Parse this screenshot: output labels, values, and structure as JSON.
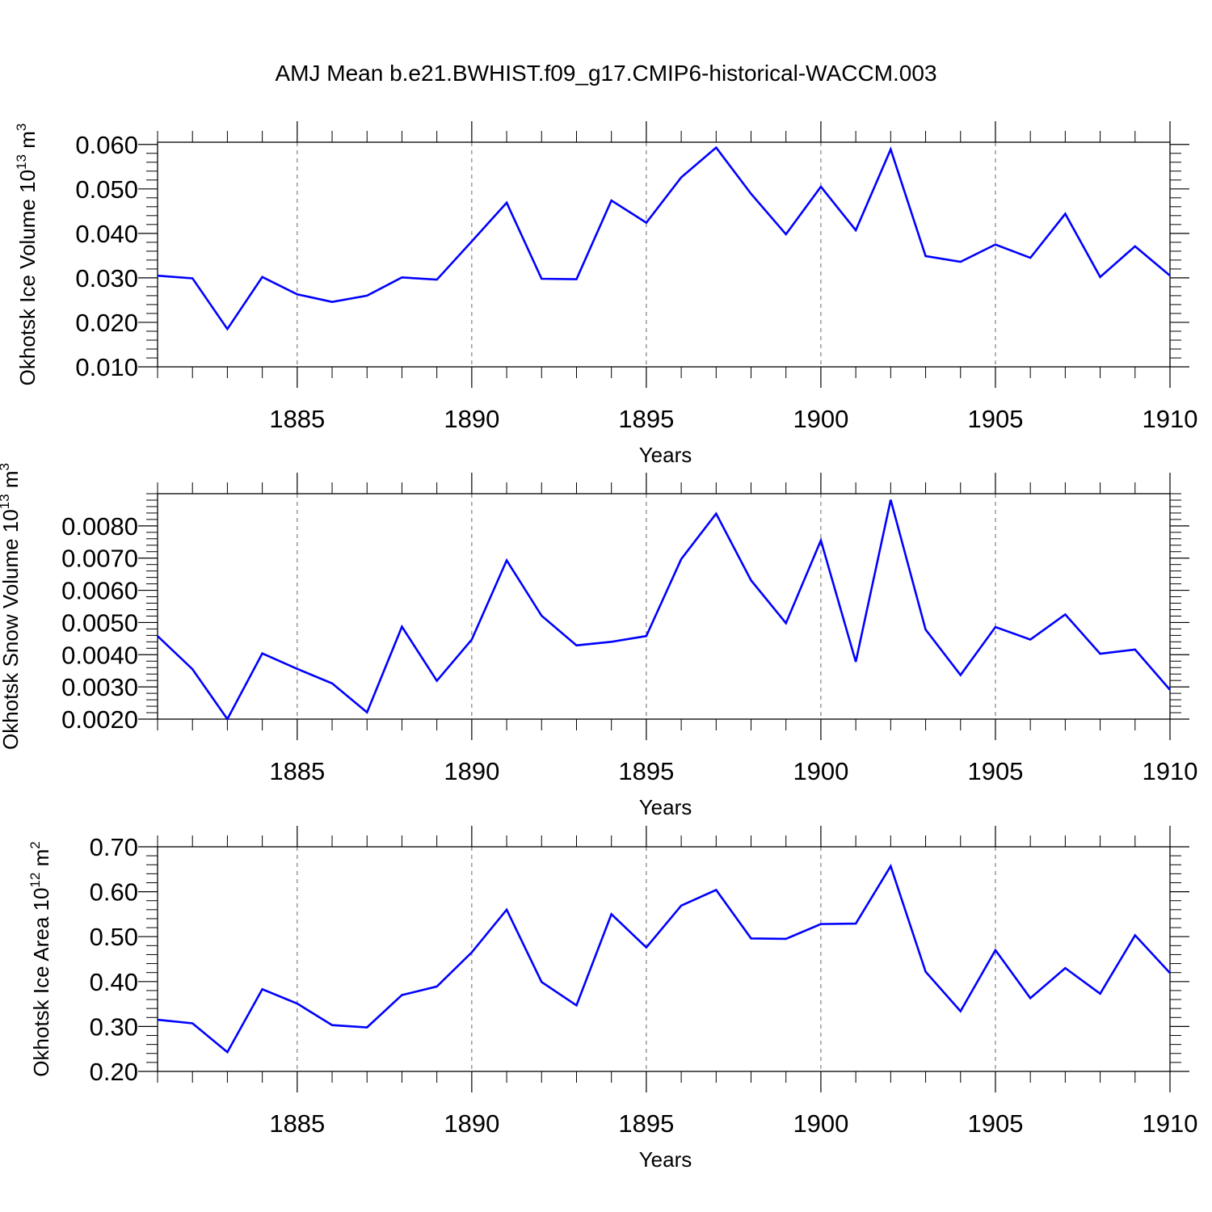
{
  "title": "AMJ Mean b.e21.BWHIST.f09_g17.CMIP6-historical-WACCM.003",
  "colors": {
    "line": "#0000ff",
    "axis": "#000000",
    "grid": "#666666"
  },
  "chart_data": [
    {
      "type": "line",
      "name": "ice-volume",
      "xlabel": "Years",
      "ylabel": {
        "text": "Okhotsk Ice Volume 10",
        "exponent": "13",
        "unit": " m",
        "unit_exponent": "3"
      },
      "xlim": [
        1881,
        1910
      ],
      "ylim": [
        0.01,
        0.0605
      ],
      "xticks": [
        1885,
        1890,
        1895,
        1900,
        1905,
        1910
      ],
      "xtick_labels": [
        "1885",
        "1890",
        "1895",
        "1900",
        "1905",
        "1910"
      ],
      "yticks": [
        0.01,
        0.02,
        0.03,
        0.04,
        0.05,
        0.06
      ],
      "ytick_labels": [
        "0.010",
        "0.020",
        "0.030",
        "0.040",
        "0.050",
        "0.060"
      ],
      "grid": "vertical dashed at major x ticks",
      "x": [
        1881,
        1882,
        1883,
        1884,
        1885,
        1886,
        1887,
        1888,
        1889,
        1890,
        1891,
        1892,
        1893,
        1894,
        1895,
        1896,
        1897,
        1898,
        1899,
        1900,
        1901,
        1902,
        1903,
        1904,
        1905,
        1906,
        1907,
        1908,
        1909,
        1910
      ],
      "values": [
        0.0305,
        0.0299,
        0.0185,
        0.0302,
        0.0263,
        0.0246,
        0.026,
        0.0301,
        0.0296,
        0.0382,
        0.0469,
        0.0298,
        0.0297,
        0.0474,
        0.0424,
        0.0526,
        0.0593,
        0.0489,
        0.0398,
        0.0505,
        0.0407,
        0.0589,
        0.0349,
        0.0336,
        0.0375,
        0.0345,
        0.0444,
        0.0302,
        0.0371,
        0.0305
      ]
    },
    {
      "type": "line",
      "name": "snow-volume",
      "xlabel": "Years",
      "ylabel": {
        "text": "Okhotsk Snow Volume 10",
        "exponent": "13",
        "unit": " m",
        "unit_exponent": "3"
      },
      "xlim": [
        1881,
        1910
      ],
      "ylim": [
        0.002,
        0.009
      ],
      "xticks": [
        1885,
        1890,
        1895,
        1900,
        1905,
        1910
      ],
      "xtick_labels": [
        "1885",
        "1890",
        "1895",
        "1900",
        "1905",
        "1910"
      ],
      "yticks": [
        0.002,
        0.003,
        0.004,
        0.005,
        0.006,
        0.007,
        0.008
      ],
      "ytick_labels": [
        "0.0020",
        "0.0030",
        "0.0040",
        "0.0050",
        "0.0060",
        "0.0070",
        "0.0080"
      ],
      "grid": "vertical dashed at major x ticks",
      "x": [
        1881,
        1882,
        1883,
        1884,
        1885,
        1886,
        1887,
        1888,
        1889,
        1890,
        1891,
        1892,
        1893,
        1894,
        1895,
        1896,
        1897,
        1898,
        1899,
        1900,
        1901,
        1902,
        1903,
        1904,
        1905,
        1906,
        1907,
        1908,
        1909,
        1910
      ],
      "values": [
        0.00458,
        0.00355,
        0.002,
        0.00404,
        0.00356,
        0.00311,
        0.00221,
        0.00487,
        0.00319,
        0.00447,
        0.00693,
        0.00521,
        0.00429,
        0.0044,
        0.00458,
        0.00697,
        0.00838,
        0.00631,
        0.00498,
        0.00755,
        0.00378,
        0.00881,
        0.00478,
        0.00337,
        0.00486,
        0.00447,
        0.00525,
        0.00403,
        0.00416,
        0.00291
      ]
    },
    {
      "type": "line",
      "name": "ice-area",
      "xlabel": "Years",
      "ylabel": {
        "text": "Okhotsk Ice Area 10",
        "exponent": "12",
        "unit": " m",
        "unit_exponent": "2"
      },
      "xlim": [
        1881,
        1910
      ],
      "ylim": [
        0.2,
        0.7
      ],
      "xticks": [
        1885,
        1890,
        1895,
        1900,
        1905,
        1910
      ],
      "xtick_labels": [
        "1885",
        "1890",
        "1895",
        "1900",
        "1905",
        "1910"
      ],
      "yticks": [
        0.2,
        0.3,
        0.4,
        0.5,
        0.6,
        0.7
      ],
      "ytick_labels": [
        "0.20",
        "0.30",
        "0.40",
        "0.50",
        "0.60",
        "0.70"
      ],
      "grid": "vertical dashed at major x ticks",
      "x": [
        1881,
        1882,
        1883,
        1884,
        1885,
        1886,
        1887,
        1888,
        1889,
        1890,
        1891,
        1892,
        1893,
        1894,
        1895,
        1896,
        1897,
        1898,
        1899,
        1900,
        1901,
        1902,
        1903,
        1904,
        1905,
        1906,
        1907,
        1908,
        1909,
        1910
      ],
      "values": [
        0.315,
        0.307,
        0.243,
        0.383,
        0.351,
        0.303,
        0.298,
        0.37,
        0.389,
        0.465,
        0.56,
        0.399,
        0.347,
        0.55,
        0.476,
        0.569,
        0.604,
        0.496,
        0.495,
        0.528,
        0.529,
        0.657,
        0.422,
        0.334,
        0.47,
        0.363,
        0.43,
        0.373,
        0.503,
        0.419
      ]
    }
  ]
}
